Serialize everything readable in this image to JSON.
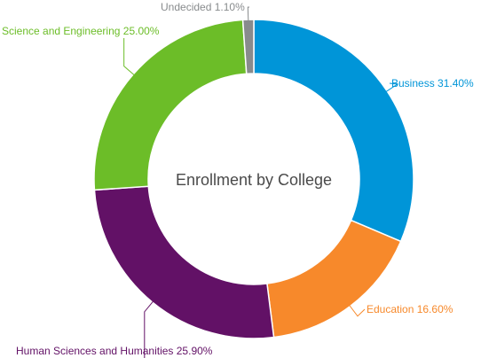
{
  "chart_data": {
    "type": "pie",
    "variant": "donut",
    "title": "Enrollment by College",
    "label_format": "{name} {value}%",
    "slices": [
      {
        "name": "Business",
        "value": 31.4,
        "value_text": "31.40%",
        "color": "#0095d8"
      },
      {
        "name": "Education",
        "value": 16.6,
        "value_text": "16.60%",
        "color": "#f7892b"
      },
      {
        "name": "Human Sciences and Humanities",
        "value": 25.9,
        "value_text": "25.90%",
        "color": "#621166"
      },
      {
        "name": "Science and Engineering",
        "value": 25.0,
        "value_text": "25.00%",
        "color": "#6cbd28"
      },
      {
        "name": "Undecided",
        "value": 1.1,
        "value_text": "1.10%",
        "color": "#888b8d"
      }
    ],
    "start_angle": "12 o'clock",
    "direction": "clockwise",
    "legend": "none"
  }
}
